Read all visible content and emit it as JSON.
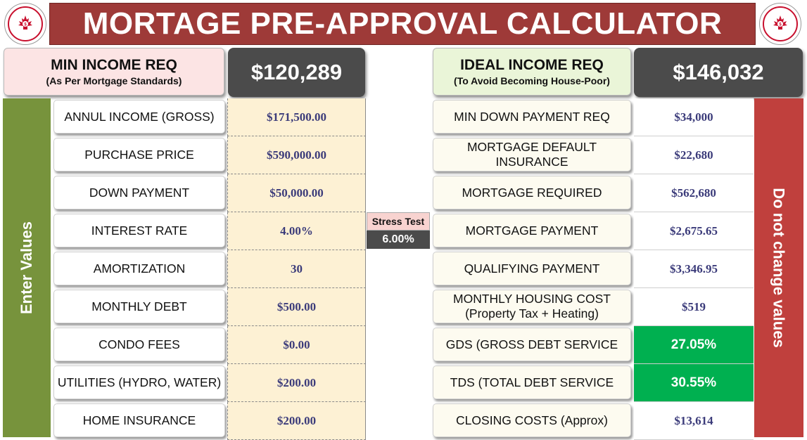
{
  "header": {
    "title": "MORTAGE PRE-APPROVAL CALCULATOR",
    "logo_text": "CANADIAN FINANCIAL LITERACY"
  },
  "min_income": {
    "label": "MIN INCOME REQ",
    "sublabel": "(As Per Mortgage Standards)",
    "value": "$120,289",
    "label_bg": "#fce4e4"
  },
  "ideal_income": {
    "label": "IDEAL INCOME REQ",
    "sublabel": "(To Avoid Becoming House-Poor)",
    "value": "$146,032",
    "label_bg": "#eaf5d8"
  },
  "side_left": {
    "text": "Enter Values",
    "color": "#77933c"
  },
  "side_right": {
    "text": "Do not change values",
    "color": "#c0403d"
  },
  "inputs": [
    {
      "label": "ANNUL INCOME (GROSS)",
      "value": "$171,500.00"
    },
    {
      "label": "PURCHASE PRICE",
      "value": "$590,000.00"
    },
    {
      "label": "DOWN PAYMENT",
      "value": "$50,000.00"
    },
    {
      "label": "INTEREST RATE",
      "value": "4.00%"
    },
    {
      "label": "AMORTIZATION",
      "value": "30"
    },
    {
      "label": "MONTHLY DEBT",
      "value": "$500.00"
    },
    {
      "label": "CONDO FEES",
      "value": "$0.00"
    },
    {
      "label": "UTILITIES (HYDRO, WATER)",
      "value": "$200.00"
    },
    {
      "label": "HOME INSURANCE",
      "value": "$200.00"
    }
  ],
  "stress_test": {
    "label": "Stress Test",
    "value": "6.00%"
  },
  "outputs": [
    {
      "label": "MIN DOWN PAYMENT REQ",
      "label2": "",
      "value": "$34,000"
    },
    {
      "label": "MORTGAGE DEFAULT",
      "label2": "INSURANCE",
      "value": "$22,680"
    },
    {
      "label": "MORTGAGE REQUIRED",
      "label2": "",
      "value": "$562,680"
    },
    {
      "label": "MORTGAGE PAYMENT",
      "label2": "",
      "value": "$2,675.65"
    },
    {
      "label": "QUALIFYING PAYMENT",
      "label2": "",
      "value": "$3,346.95"
    },
    {
      "label": "MONTHLY HOUSING COST",
      "label2": "(Property Tax + Heating)",
      "value": "$519"
    },
    {
      "label": "GDS (GROSS DEBT SERVICE",
      "label2": "",
      "value": "27.05%",
      "highlight": "#00b050"
    },
    {
      "label": "TDS (TOTAL DEBT SERVICE",
      "label2": "",
      "value": "30.55%",
      "highlight": "#00b050"
    },
    {
      "label": "CLOSING COSTS (Approx)",
      "label2": "",
      "value": "$13,614"
    }
  ]
}
